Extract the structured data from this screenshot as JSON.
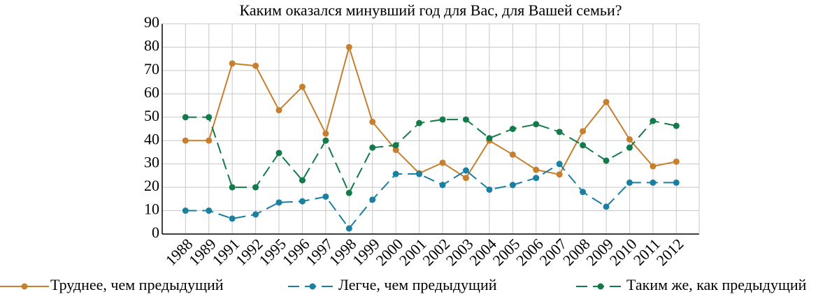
{
  "chart_data": {
    "type": "line",
    "title": "Каким оказался минувший год для Вас, для Вашей семьи?",
    "categories": [
      "1988",
      "1989",
      "1991",
      "1992",
      "1995",
      "1996",
      "1997",
      "1998",
      "1999",
      "2000",
      "2001",
      "2002",
      "2003",
      "2004",
      "2005",
      "2006",
      "2007",
      "2008",
      "2009",
      "2010",
      "2011",
      "2012"
    ],
    "series": [
      {
        "name": "Труднее, чем предыдущий",
        "color": "#c87f2d",
        "dash": "solid",
        "values": [
          40,
          40,
          73,
          72,
          53,
          63,
          43,
          80,
          48,
          36,
          26,
          30.5,
          24,
          40,
          34,
          27.5,
          25.5,
          44,
          56.5,
          40.5,
          29,
          31
        ]
      },
      {
        "name": "Легче, чем предыдущий",
        "color": "#1a7fa0",
        "dash": "dashed",
        "values": [
          10,
          10,
          6.6,
          8.4,
          13.5,
          14,
          16,
          2.4,
          14.7,
          25.7,
          25.7,
          21,
          27.2,
          19,
          21,
          24,
          30,
          18,
          11.7,
          22,
          22,
          22
        ]
      },
      {
        "name": "Таким же, как предыдущий",
        "color": "#137a4a",
        "dash": "dashed",
        "values": [
          50,
          50,
          20,
          20,
          34.7,
          23,
          40,
          17.6,
          37,
          38,
          47.5,
          49,
          49,
          41,
          45,
          47,
          43.7,
          38,
          31.4,
          37,
          48.4,
          46.3
        ]
      }
    ],
    "ylim": [
      0,
      90
    ],
    "yticks": [
      0,
      10,
      20,
      30,
      40,
      50,
      60,
      70,
      80,
      90
    ],
    "grid": true,
    "legend": "bottom"
  }
}
